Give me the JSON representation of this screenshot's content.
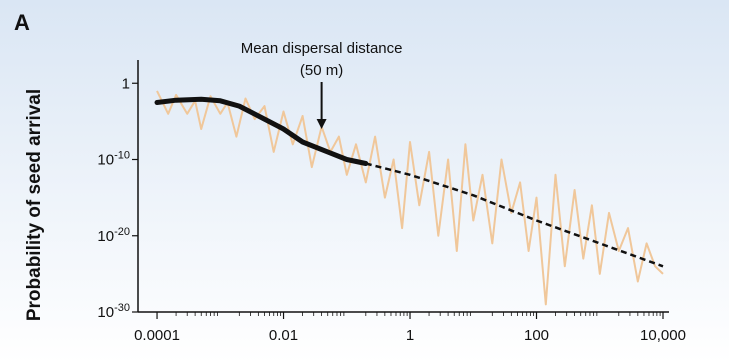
{
  "chart_data": {
    "type": "line",
    "panel_label": "A",
    "title": "",
    "xlabel": "",
    "ylabel": "Probability of seed arrival",
    "x_scale": "log",
    "y_scale": "log",
    "xlim": [
      5e-05,
      10000
    ],
    "ylim": [
      1e-30,
      100.0
    ],
    "grid": false,
    "x_ticks": [
      {
        "value": 0.0001,
        "label": "0.0001"
      },
      {
        "value": 0.01,
        "label": "0.01"
      },
      {
        "value": 1,
        "label": "1"
      },
      {
        "value": 100,
        "label": "100"
      },
      {
        "value": 10000,
        "label": "10,000"
      }
    ],
    "y_ticks": [
      {
        "value": 1,
        "base": "1",
        "exp": ""
      },
      {
        "value": 1e-10,
        "base": "10",
        "exp": "-10"
      },
      {
        "value": 1e-20,
        "base": "10",
        "exp": "-20"
      },
      {
        "value": 1e-30,
        "base": "10",
        "exp": "-30"
      }
    ],
    "annotation": {
      "line1": "Mean dispersal distance",
      "line2": "(50 m)",
      "x": 0.04,
      "y": 1e-06
    },
    "series": [
      {
        "style": "thick-solid",
        "color": "#111111",
        "x": [
          0.0001,
          0.0002,
          0.0005,
          0.001,
          0.002,
          0.005,
          0.01,
          0.02,
          0.05,
          0.1,
          0.2
        ],
        "y": [
          0.003,
          0.006,
          0.008,
          0.005,
          0.001,
          2e-05,
          1e-06,
          2e-08,
          1e-09,
          1e-10,
          3e-11
        ]
      },
      {
        "style": "dashed",
        "color": "#111111",
        "x": [
          0.2,
          1,
          10,
          100,
          1000,
          10000
        ],
        "y": [
          3e-11,
          1e-12,
          2e-15,
          1e-18,
          1e-21,
          1e-24
        ]
      },
      {
        "style": "noisy",
        "color": "#f0c79a",
        "x": [
          0.0001,
          0.00015,
          0.0002,
          0.0003,
          0.0004,
          0.0005,
          0.0007,
          0.001,
          0.0013,
          0.0018,
          0.0025,
          0.0035,
          0.005,
          0.007,
          0.01,
          0.014,
          0.02,
          0.028,
          0.04,
          0.055,
          0.075,
          0.1,
          0.14,
          0.2,
          0.28,
          0.4,
          0.55,
          0.75,
          1,
          1.4,
          2,
          2.8,
          4,
          5.5,
          7.5,
          10,
          14,
          20,
          28,
          40,
          55,
          75,
          100,
          140,
          200,
          280,
          400,
          550,
          750,
          1000,
          1400,
          2000,
          2800,
          4000,
          5500,
          7500,
          10000
        ],
        "y": [
          0.1,
          0.0001,
          0.03,
          0.0001,
          0.005,
          1e-06,
          0.02,
          0.0001,
          0.003,
          1e-07,
          0.01,
          2e-05,
          0.001,
          1e-09,
          0.0002,
          1e-08,
          5e-05,
          1e-11,
          2e-06,
          1e-09,
          1e-07,
          1e-12,
          1e-08,
          1e-13,
          1e-07,
          1e-15,
          1e-10,
          1e-19,
          2e-08,
          1e-16,
          1e-09,
          1e-20,
          1e-10,
          1e-22,
          1e-08,
          1e-18,
          1e-12,
          1e-21,
          1e-10,
          1e-17,
          1e-13,
          1e-22,
          1e-15,
          1e-29,
          1e-12,
          1e-24,
          1e-14,
          1e-23,
          1e-16,
          1e-25,
          1e-17,
          1e-22,
          1e-19,
          1e-26,
          1e-21,
          1e-24,
          1e-25
        ]
      }
    ]
  }
}
